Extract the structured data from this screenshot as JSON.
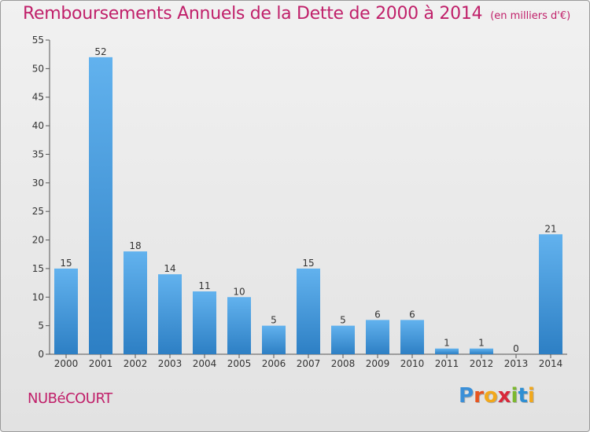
{
  "title": "Remboursements Annuels de la Dette de 2000 à 2014",
  "subtitle": "(en milliers d'€)",
  "commune": "NUBéCOURT",
  "brand": {
    "text": "Proxiti",
    "letters": [
      {
        "ch": "P",
        "color": "#3a8fd8"
      },
      {
        "ch": "r",
        "color": "#e8541e"
      },
      {
        "ch": "o",
        "color": "#f2a81b"
      },
      {
        "ch": "x",
        "color": "#d8283a"
      },
      {
        "ch": "i",
        "color": "#7cb82f"
      },
      {
        "ch": "t",
        "color": "#2f8fd3"
      },
      {
        "ch": "i",
        "color": "#f2a81b"
      }
    ]
  },
  "colors": {
    "title": "#c0206a",
    "bar_light": "#62b2ee",
    "bar_dark": "#2d7fc4",
    "axis": "#555555"
  },
  "chart_data": {
    "type": "bar",
    "categories": [
      "2000",
      "2001",
      "2002",
      "2003",
      "2004",
      "2005",
      "2006",
      "2007",
      "2008",
      "2009",
      "2010",
      "2011",
      "2012",
      "2013",
      "2014"
    ],
    "values": [
      15,
      52,
      18,
      14,
      11,
      10,
      5,
      15,
      5,
      6,
      6,
      1,
      1,
      0,
      21
    ],
    "title": "Remboursements Annuels de la Dette de 2000 à 2014",
    "xlabel": "",
    "ylabel": "",
    "ylim": [
      0,
      55
    ],
    "yticks": [
      0,
      5,
      10,
      15,
      20,
      25,
      30,
      35,
      40,
      45,
      50,
      55
    ],
    "grid": false,
    "data_labels": true
  }
}
